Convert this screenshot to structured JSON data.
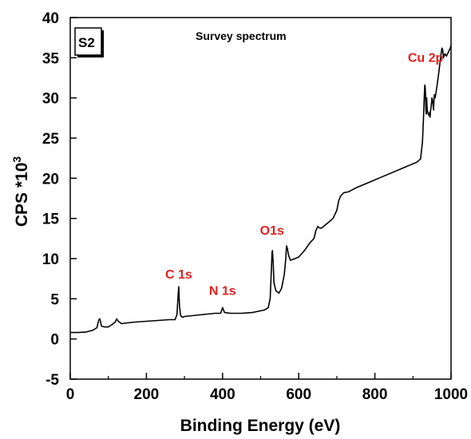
{
  "chart_data": {
    "type": "line",
    "title": "Survey spectrum",
    "sample_label": "S2",
    "xlabel": "Binding Energy (eV)",
    "ylabel_main": "CPS *10",
    "ylabel_sup": "3",
    "xlim": [
      0,
      1000
    ],
    "ylim": [
      -5,
      40
    ],
    "xticks": [
      0,
      200,
      400,
      600,
      800,
      1000
    ],
    "yticks": [
      -5,
      0,
      5,
      10,
      15,
      20,
      25,
      30,
      35,
      40
    ],
    "grid": false,
    "line_color": "#000000",
    "annotation_color": "#e02020",
    "annotations": [
      {
        "text": "C 1s",
        "x": 285,
        "y": 7.5
      },
      {
        "text": "N 1s",
        "x": 400,
        "y": 5.5
      },
      {
        "text": "O1s",
        "x": 530,
        "y": 13.0
      },
      {
        "text": "Cu 2p",
        "x": 933,
        "y": 34.5
      }
    ],
    "series": [
      {
        "x": [
          0,
          20,
          40,
          60,
          70,
          75,
          78,
          82,
          90,
          100,
          110,
          118,
          122,
          126,
          135,
          150,
          170,
          200,
          230,
          260,
          275,
          280,
          283,
          285,
          287,
          290,
          295,
          300,
          320,
          340,
          360,
          380,
          395,
          400,
          405,
          420,
          450,
          480,
          500,
          510,
          520,
          525,
          528,
          530,
          531,
          533,
          535,
          540,
          548,
          555,
          562,
          566,
          568,
          570,
          573,
          578,
          585,
          600,
          615,
          630,
          640,
          645,
          650,
          655,
          660,
          670,
          680,
          690,
          700,
          705,
          710,
          718,
          730,
          750,
          770,
          790,
          810,
          830,
          850,
          870,
          890,
          910,
          920,
          925,
          928,
          930,
          931,
          932,
          933,
          934,
          935,
          936,
          937,
          938,
          940,
          942,
          944,
          945,
          946,
          948,
          950,
          952,
          953,
          954,
          955,
          956,
          958,
          960,
          963,
          966,
          968,
          970,
          972,
          974,
          976,
          978,
          980,
          984,
          988,
          992,
          996,
          1000
        ],
        "y": [
          0.8,
          0.8,
          0.85,
          1.1,
          1.4,
          2.4,
          2.5,
          1.6,
          1.5,
          1.5,
          1.8,
          2.1,
          2.5,
          2.2,
          1.9,
          2.0,
          2.1,
          2.2,
          2.3,
          2.4,
          2.4,
          3.0,
          5.2,
          6.5,
          4.0,
          2.9,
          2.7,
          2.8,
          2.9,
          3.0,
          3.1,
          3.2,
          3.2,
          3.9,
          3.3,
          3.2,
          3.2,
          3.3,
          3.5,
          3.6,
          3.9,
          5.0,
          8.5,
          10.8,
          11.0,
          9.5,
          7.0,
          6.0,
          5.7,
          6.3,
          8.0,
          10.0,
          11.6,
          11.3,
          10.5,
          9.8,
          9.9,
          10.2,
          11.0,
          12.0,
          12.5,
          13.5,
          14.0,
          13.8,
          13.8,
          14.2,
          14.6,
          15.0,
          16.0,
          17.2,
          17.8,
          18.2,
          18.3,
          18.8,
          19.2,
          19.6,
          20.0,
          20.4,
          20.8,
          21.2,
          21.6,
          22.0,
          22.4,
          24.5,
          28.0,
          30.5,
          31.6,
          31.3,
          30.5,
          28.5,
          28.0,
          30.0,
          29.0,
          28.4,
          28.0,
          27.8,
          28.2,
          27.6,
          28.3,
          29.0,
          30.0,
          29.5,
          29.0,
          28.5,
          29.5,
          30.4,
          30.0,
          30.5,
          31.5,
          32.5,
          33.2,
          34.0,
          34.8,
          35.5,
          36.2,
          36.0,
          35.0,
          35.5,
          35.2,
          35.6,
          36.0,
          36.5
        ]
      }
    ]
  }
}
